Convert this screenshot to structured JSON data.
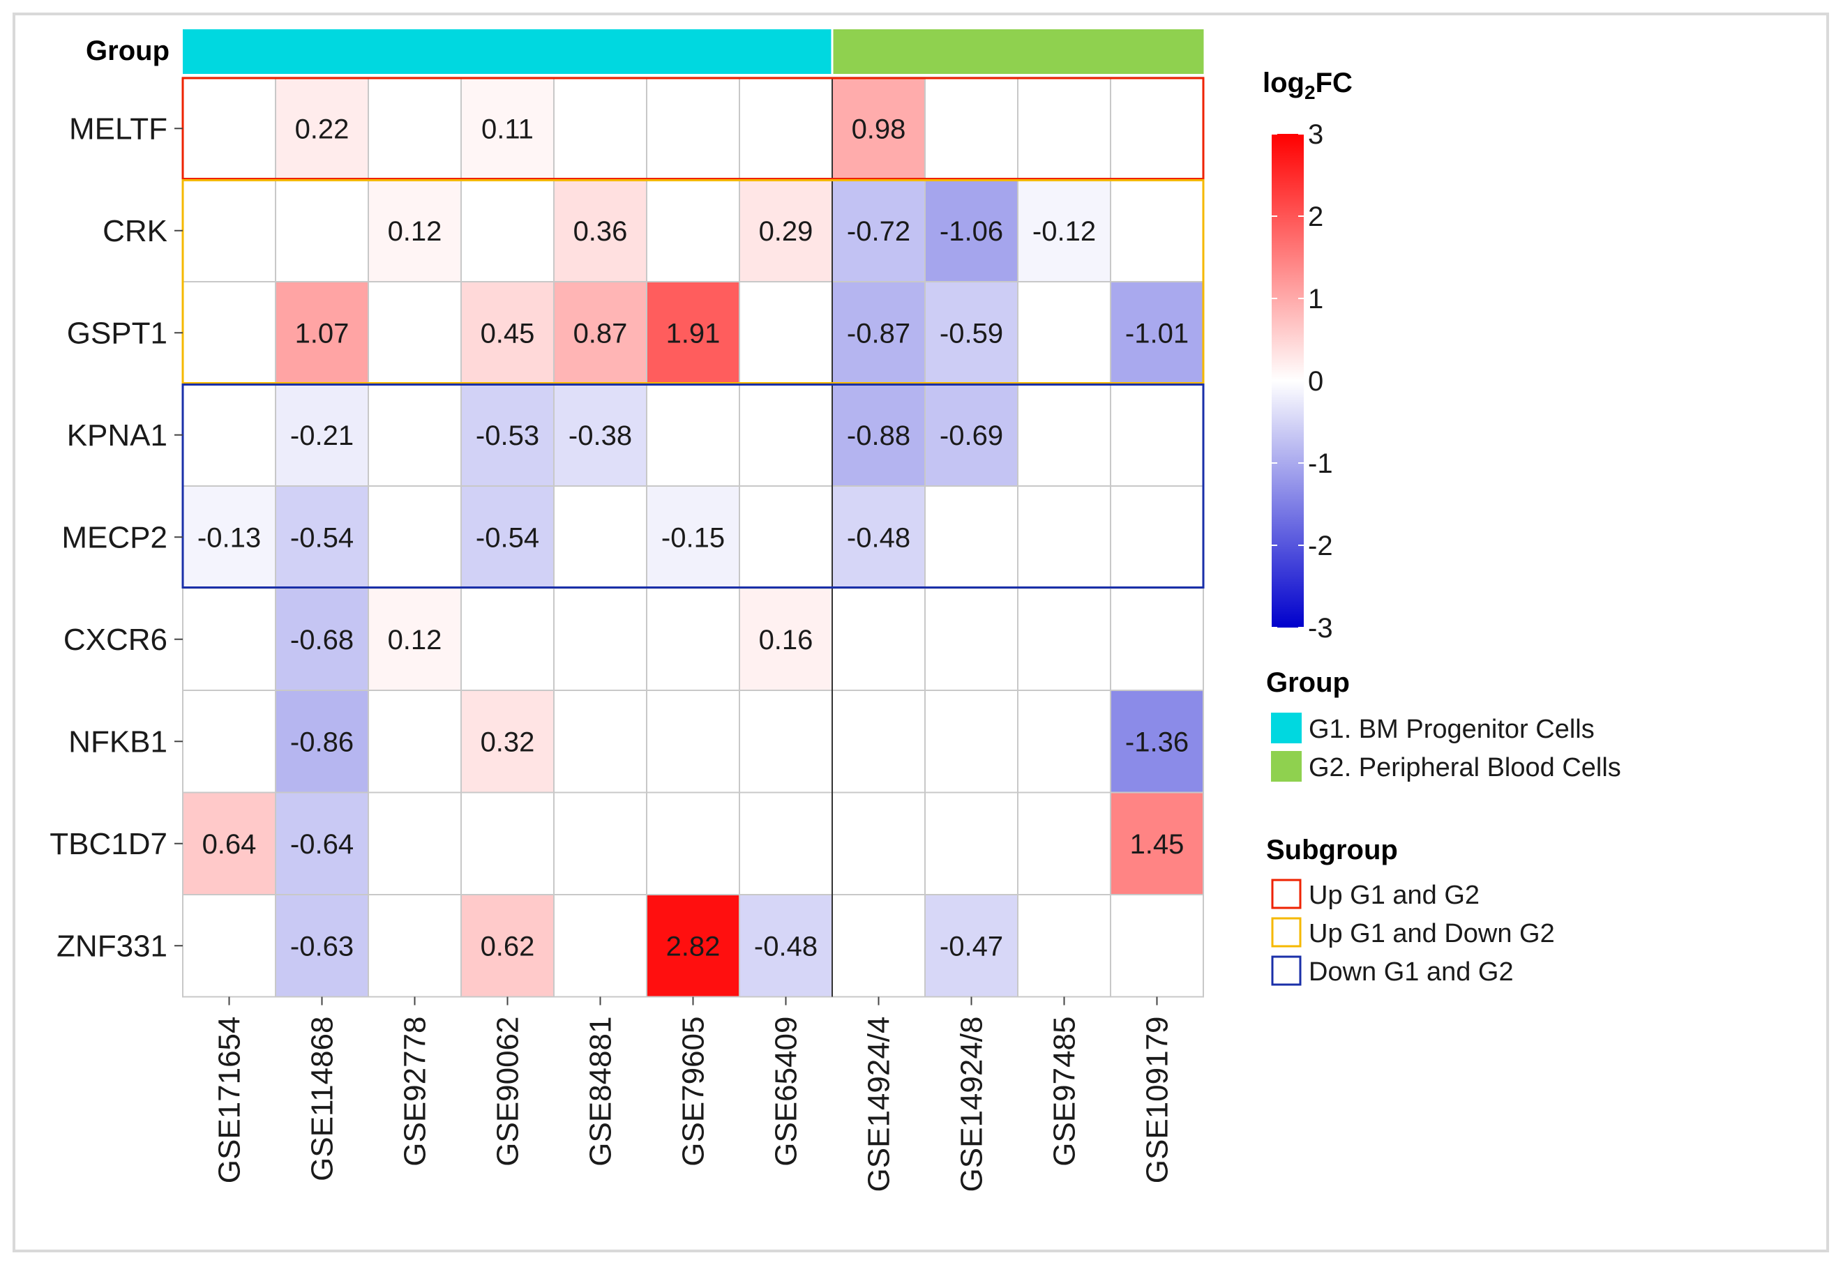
{
  "chart_data": {
    "type": "heatmap",
    "group_title": "Group",
    "rows": [
      "MELTF",
      "CRK",
      "GSPT1",
      "KPNA1",
      "MECP2",
      "CXCR6",
      "NFKB1",
      "TBC1D7",
      "ZNF331"
    ],
    "columns": [
      "GSE171654",
      "GSE114868",
      "GSE92778",
      "GSE90062",
      "GSE84881",
      "GSE79605",
      "GSE65409",
      "GSE14924/4",
      "GSE14924/8",
      "GSE97485",
      "GSE109179"
    ],
    "column_groups": [
      "G1",
      "G1",
      "G1",
      "G1",
      "G1",
      "G1",
      "G1",
      "G2",
      "G2",
      "G2",
      "G2"
    ],
    "values": [
      [
        null,
        0.22,
        null,
        0.11,
        null,
        null,
        null,
        0.98,
        null,
        null,
        null
      ],
      [
        null,
        null,
        0.12,
        null,
        0.36,
        null,
        0.29,
        -0.72,
        -1.06,
        -0.12,
        null
      ],
      [
        null,
        1.07,
        null,
        0.45,
        0.87,
        1.91,
        null,
        -0.87,
        -0.59,
        null,
        -1.01
      ],
      [
        null,
        -0.21,
        null,
        -0.53,
        -0.38,
        null,
        null,
        -0.88,
        -0.69,
        null,
        null
      ],
      [
        -0.13,
        -0.54,
        null,
        -0.54,
        null,
        -0.15,
        null,
        -0.48,
        null,
        null,
        null
      ],
      [
        null,
        -0.68,
        0.12,
        null,
        null,
        null,
        0.16,
        null,
        null,
        null,
        null
      ],
      [
        null,
        -0.86,
        null,
        0.32,
        null,
        null,
        null,
        null,
        null,
        null,
        -1.36
      ],
      [
        0.64,
        -0.64,
        null,
        null,
        null,
        null,
        null,
        null,
        null,
        null,
        1.45
      ],
      [
        null,
        -0.63,
        null,
        0.62,
        null,
        2.82,
        -0.48,
        null,
        -0.47,
        null,
        null
      ]
    ],
    "labels": [
      [
        "",
        "0.22",
        "",
        "0.11",
        "",
        "",
        "",
        "0.98",
        "",
        "",
        ""
      ],
      [
        "",
        "",
        "0.12",
        "",
        "0.36",
        "",
        "0.29",
        "-0.72",
        "-1.06",
        "-0.12",
        ""
      ],
      [
        "",
        "1.07",
        "",
        "0.45",
        "0.87",
        "1.91",
        "",
        "-0.87",
        "-0.59",
        "",
        "-1.01"
      ],
      [
        "",
        "-0.21",
        "",
        "-0.53",
        "-0.38",
        "",
        "",
        "-0.88",
        "-0.69",
        "",
        ""
      ],
      [
        "-0.13",
        "-0.54",
        "",
        "-0.54",
        "",
        "-0.15",
        "",
        "-0.48",
        "",
        "",
        ""
      ],
      [
        "",
        "-0.68",
        "0.12",
        "",
        "",
        "",
        "0.16",
        "",
        "",
        "",
        ""
      ],
      [
        "",
        "-0.86",
        "",
        "0.32",
        "",
        "",
        "",
        "",
        "",
        "",
        "-1.36"
      ],
      [
        "0.64",
        "-0.64",
        "",
        "",
        "",
        "",
        "",
        "",
        "",
        "",
        "1.45"
      ],
      [
        "",
        "-0.63",
        "",
        "0.62",
        "",
        "2.82",
        "-0.48",
        "",
        "-0.47",
        "",
        ""
      ]
    ],
    "color_scale": {
      "min": -3,
      "max": 3,
      "low": "#0000cc",
      "mid": "#ffffff",
      "high": "#ff0000",
      "ticks": [
        3,
        2,
        1,
        0,
        -1,
        -2,
        -3
      ]
    },
    "subgroup_boxes": [
      {
        "rows": [
          0,
          0
        ],
        "color": "#ee2200"
      },
      {
        "rows": [
          1,
          2
        ],
        "color": "#f5b800"
      },
      {
        "rows": [
          3,
          4
        ],
        "color": "#1a2fa8"
      }
    ],
    "grid_color": "#c8c8c8",
    "legend": {
      "colorbar_title_base": "log",
      "colorbar_title_sub": "2",
      "colorbar_title_tail": "FC",
      "group_title": "Group",
      "groups": [
        {
          "key": "G1",
          "label": "G1. BM Progenitor Cells",
          "color": "#00d8e0"
        },
        {
          "key": "G2",
          "label": "G2. Peripheral Blood Cells",
          "color": "#8fd14f"
        }
      ],
      "subgroup_title": "Subgroup",
      "subgroups": [
        {
          "label": "Up G1 and G2",
          "color": "#ee2200"
        },
        {
          "label": "Up G1 and Down G2",
          "color": "#f5b800"
        },
        {
          "label": "Down G1 and G2",
          "color": "#1a2fa8"
        }
      ]
    }
  }
}
